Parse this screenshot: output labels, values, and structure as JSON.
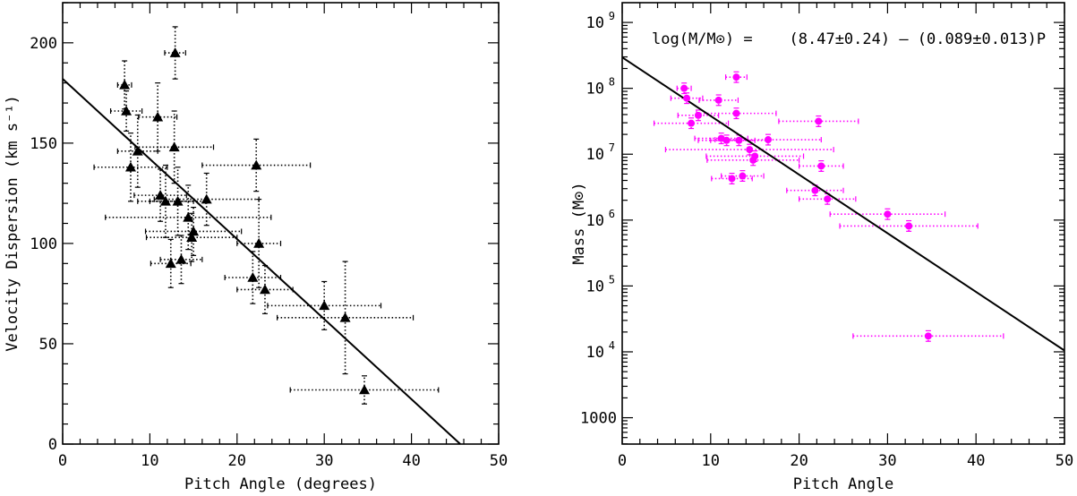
{
  "chart_data": [
    {
      "type": "scatter",
      "panel": "left",
      "xlabel": "Pitch Angle (degrees)",
      "ylabel": "Velocity Dispersion (km s⁻¹)",
      "xlim": [
        0,
        50
      ],
      "ylim": [
        0,
        220
      ],
      "x_ticks": [
        "0",
        "10",
        "20",
        "30",
        "40",
        "50"
      ],
      "y_ticks": [
        "0",
        "50",
        "100",
        "150",
        "200"
      ],
      "marker": "triangle",
      "marker_color": "#000000",
      "errorbar_color": "#000000",
      "points": [
        {
          "x": 7.1,
          "y": 179,
          "xerr": 0.8,
          "yerr": 12
        },
        {
          "x": 7.3,
          "y": 166,
          "xerr": 1.8,
          "yerr": 10
        },
        {
          "x": 12.9,
          "y": 195,
          "xerr": 1.2,
          "yerr": 13
        },
        {
          "x": 10.9,
          "y": 163,
          "xerr": 2.2,
          "yerr": 17
        },
        {
          "x": 8.6,
          "y": 146,
          "xerr": 2.3,
          "yerr": 18
        },
        {
          "x": 7.8,
          "y": 138,
          "xerr": 4.2,
          "yerr": 17
        },
        {
          "x": 12.8,
          "y": 148,
          "xerr": 4.5,
          "yerr": 18
        },
        {
          "x": 11.2,
          "y": 124,
          "xerr": 3.0,
          "yerr": 13
        },
        {
          "x": 11.8,
          "y": 121,
          "xerr": 3.2,
          "yerr": 18
        },
        {
          "x": 13.2,
          "y": 121,
          "xerr": 3.2,
          "yerr": 17
        },
        {
          "x": 16.5,
          "y": 122,
          "xerr": 6.0,
          "yerr": 13
        },
        {
          "x": 14.4,
          "y": 113,
          "xerr": 9.5,
          "yerr": 16
        },
        {
          "x": 15.0,
          "y": 106,
          "xerr": 5.5,
          "yerr": 12
        },
        {
          "x": 14.8,
          "y": 103,
          "xerr": 5.2,
          "yerr": 12
        },
        {
          "x": 22.2,
          "y": 139,
          "xerr": 6.2,
          "yerr": 13
        },
        {
          "x": 22.5,
          "y": 100,
          "xerr": 2.5,
          "yerr": 22
        },
        {
          "x": 12.4,
          "y": 90,
          "xerr": 2.3,
          "yerr": 12
        },
        {
          "x": 13.6,
          "y": 92,
          "xerr": 2.4,
          "yerr": 12
        },
        {
          "x": 21.8,
          "y": 83,
          "xerr": 3.2,
          "yerr": 13
        },
        {
          "x": 23.2,
          "y": 77,
          "xerr": 3.2,
          "yerr": 12
        },
        {
          "x": 30.0,
          "y": 69,
          "xerr": 6.5,
          "yerr": 12
        },
        {
          "x": 32.4,
          "y": 63,
          "xerr": 7.8,
          "yerr": 28
        },
        {
          "x": 34.6,
          "y": 27,
          "xerr": 8.5,
          "yerr": 7
        }
      ],
      "fit_line": {
        "x": [
          0,
          45.6
        ],
        "y": [
          182,
          0
        ]
      }
    },
    {
      "type": "scatter",
      "panel": "right",
      "xlabel": "Pitch Angle",
      "ylabel": "Mass (M⊙)",
      "xlim": [
        0,
        50
      ],
      "ylog_range": [
        2.6,
        9.3
      ],
      "x_ticks": [
        "0",
        "10",
        "20",
        "30",
        "40",
        "50"
      ],
      "y_ticks": [
        {
          "label": "1000",
          "exp": 3
        },
        {
          "label": "10",
          "sup": "4",
          "exp": 4
        },
        {
          "label": "10",
          "sup": "5",
          "exp": 5
        },
        {
          "label": "10",
          "sup": "6",
          "exp": 6
        },
        {
          "label": "10",
          "sup": "7",
          "exp": 7
        },
        {
          "label": "10",
          "sup": "8",
          "exp": 8
        },
        {
          "label": "10",
          "sup": "9",
          "exp": 9
        }
      ],
      "annotation": "log(M/M⊙) =    (8.47±0.24) – (0.089±0.013)P",
      "marker": "circle",
      "marker_color": "#ff00ff",
      "errorbar_color": "#ff00ff",
      "points": [
        {
          "x": 7.0,
          "logm": 8.0,
          "xerr": 0.8,
          "yerr": 0.08
        },
        {
          "x": 7.3,
          "logm": 7.85,
          "xerr": 1.8,
          "yerr": 0.08
        },
        {
          "x": 12.9,
          "logm": 8.17,
          "xerr": 1.2,
          "yerr": 0.08
        },
        {
          "x": 10.9,
          "logm": 7.82,
          "xerr": 2.2,
          "yerr": 0.08
        },
        {
          "x": 8.6,
          "logm": 7.59,
          "xerr": 2.3,
          "yerr": 0.08
        },
        {
          "x": 7.8,
          "logm": 7.47,
          "xerr": 4.2,
          "yerr": 0.08
        },
        {
          "x": 12.9,
          "logm": 7.62,
          "xerr": 4.5,
          "yerr": 0.08
        },
        {
          "x": 22.2,
          "logm": 7.5,
          "xerr": 4.5,
          "yerr": 0.08
        },
        {
          "x": 11.2,
          "logm": 7.24,
          "xerr": 3.0,
          "yerr": 0.08
        },
        {
          "x": 11.8,
          "logm": 7.21,
          "xerr": 3.2,
          "yerr": 0.08
        },
        {
          "x": 13.2,
          "logm": 7.21,
          "xerr": 3.2,
          "yerr": 0.08
        },
        {
          "x": 16.5,
          "logm": 7.22,
          "xerr": 6.0,
          "yerr": 0.08
        },
        {
          "x": 14.4,
          "logm": 7.07,
          "xerr": 9.5,
          "yerr": 0.08
        },
        {
          "x": 15.0,
          "logm": 6.97,
          "xerr": 5.5,
          "yerr": 0.08
        },
        {
          "x": 14.8,
          "logm": 6.91,
          "xerr": 5.2,
          "yerr": 0.08
        },
        {
          "x": 22.5,
          "logm": 6.82,
          "xerr": 2.5,
          "yerr": 0.08
        },
        {
          "x": 12.4,
          "logm": 6.63,
          "xerr": 2.3,
          "yerr": 0.08
        },
        {
          "x": 13.6,
          "logm": 6.67,
          "xerr": 2.4,
          "yerr": 0.08
        },
        {
          "x": 21.8,
          "logm": 6.45,
          "xerr": 3.2,
          "yerr": 0.08
        },
        {
          "x": 23.2,
          "logm": 6.32,
          "xerr": 3.2,
          "yerr": 0.08
        },
        {
          "x": 30.0,
          "logm": 6.09,
          "xerr": 6.5,
          "yerr": 0.08
        },
        {
          "x": 32.4,
          "logm": 5.91,
          "xerr": 7.8,
          "yerr": 0.08
        },
        {
          "x": 34.6,
          "logm": 4.24,
          "xerr": 8.5,
          "yerr": 0.08
        }
      ],
      "fit_line": {
        "x": [
          0,
          50
        ],
        "logm": [
          8.47,
          4.02
        ]
      }
    }
  ]
}
